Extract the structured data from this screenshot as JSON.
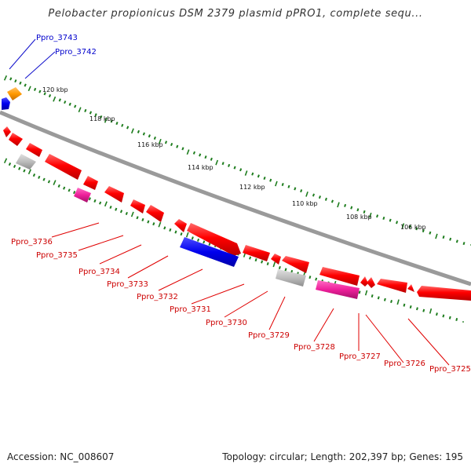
{
  "title": "Pelobacter propionicus DSM 2379 plasmid pPRO1, complete sequ...",
  "footer": {
    "accession": "Accession: NC_008607",
    "topology": "Topology: circular; Length: 202,397 bp; Genes: 195"
  },
  "colors": {
    "backbone": "#8a8a8a",
    "tick": "#1e7d1e",
    "blue_label": "#0000cc",
    "red_label": "#cc0000",
    "gene_red": "#ff0000",
    "gene_blue": "#0000ee",
    "gene_gray": "#b8b8b8",
    "gene_pink": "#ee1f9a",
    "gene_orange": "#ff9900"
  },
  "kbp_labels": [
    "120 kbp",
    "118 kbp",
    "116 kbp",
    "114 kbp",
    "112 kbp",
    "110 kbp",
    "108 kbp",
    "106 kbp"
  ],
  "gene_labels_top": [
    "Ppro_3743",
    "Ppro_3742"
  ],
  "gene_labels_bottom": [
    "Ppro_3736",
    "Ppro_3735",
    "Ppro_3734",
    "Ppro_3733",
    "Ppro_3732",
    "Ppro_3731",
    "Ppro_3730",
    "Ppro_3729",
    "Ppro_3728",
    "Ppro_3727",
    "Ppro_3726",
    "Ppro_3725"
  ]
}
